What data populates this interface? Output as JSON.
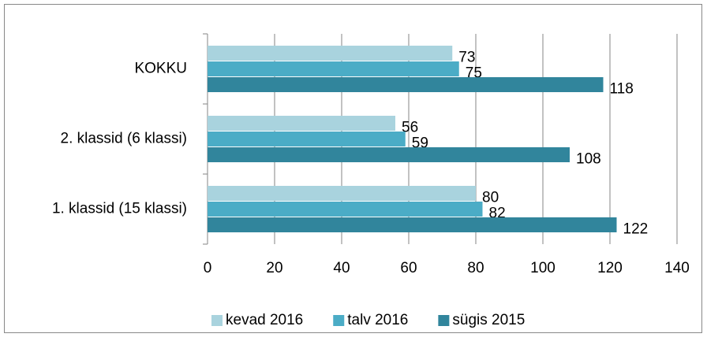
{
  "chart_data": {
    "type": "hbar",
    "categories": [
      "KOKKU",
      "2. klassid (6 klassi)",
      "1. klassid (15 klassi)"
    ],
    "series": [
      {
        "name": "kevad 2016",
        "color": "#a9d3de",
        "values": [
          73,
          56,
          80
        ]
      },
      {
        "name": "talv 2016",
        "color": "#4bacc6",
        "values": [
          75,
          59,
          82
        ]
      },
      {
        "name": "sügis 2015",
        "color": "#31859c",
        "values": [
          118,
          108,
          122
        ]
      }
    ],
    "xlim": [
      0,
      140
    ],
    "xticks": [
      0,
      20,
      40,
      60,
      80,
      100,
      120,
      140
    ],
    "grid": true,
    "legend": "bottom"
  }
}
